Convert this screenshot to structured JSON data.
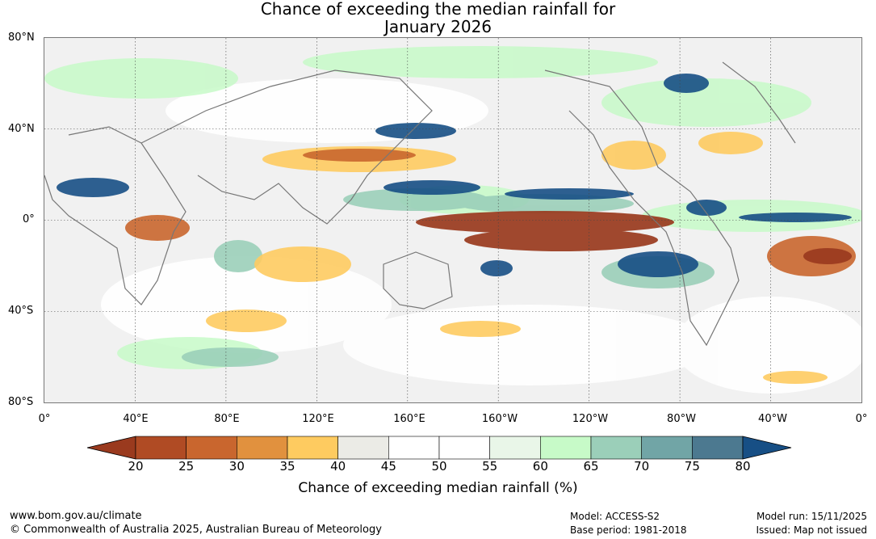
{
  "title": {
    "line1": "Chance of exceeding the median rainfall for",
    "line2": "January 2026"
  },
  "map": {
    "lat_labels": [
      "80°N",
      "40°N",
      "0°",
      "40°S",
      "80°S"
    ],
    "lon_labels": [
      "0°",
      "40°E",
      "80°E",
      "120°E",
      "160°E",
      "160°W",
      "120°W",
      "80°W",
      "40°W",
      "0°"
    ],
    "lat_range": [
      -80,
      80
    ],
    "lon_range": [
      0,
      360
    ],
    "gridlines": true,
    "coastline_color": "#777777"
  },
  "colorbar": {
    "ticks": [
      "20",
      "25",
      "30",
      "35",
      "40",
      "45",
      "50",
      "55",
      "60",
      "65",
      "70",
      "75",
      "80"
    ],
    "colors": [
      "#9a3a1e",
      "#b04b24",
      "#c9662e",
      "#e1913e",
      "#fecb60",
      "#ebebe6",
      "#ffffff",
      "#ffffff",
      "#e9f6e8",
      "#c7fac8",
      "#9bcfb9",
      "#71a5a6",
      "#4c7990",
      "#174f85"
    ],
    "label": "Chance of exceeding median rainfall (%)"
  },
  "footer": {
    "website": "www.bom.gov.au/climate",
    "copyright": "© Commonwealth of Australia 2025, Australian Bureau of Meteorology",
    "model": "Model: ACCESS-S2",
    "base_period": "Base period: 1981-2018",
    "model_run": "Model run: 15/11/2025",
    "issued": "Issued: Map not issued"
  }
}
